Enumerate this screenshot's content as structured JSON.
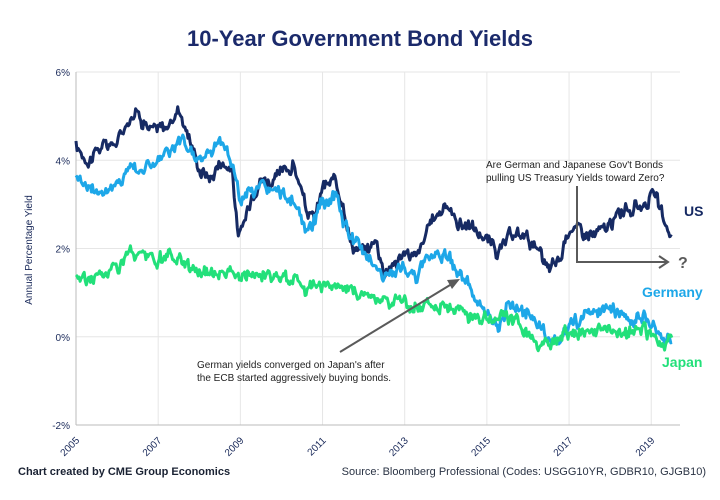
{
  "title": "10-Year Government Bond Yields",
  "credit": "Chart created by CME Group Economics",
  "source": "Source: Bloomberg Professional (Codes: USGG10YR, GDBR10, GJGB10)",
  "colors": {
    "us": "#162a63",
    "germany": "#1da7e8",
    "japan": "#22e07a",
    "text": "#1a2a5a",
    "arrow": "#5a5a5a",
    "grid": "#e6e6e6"
  },
  "chart_data": {
    "type": "line",
    "title": "10-Year Government Bond Yields",
    "ylabel": "Annual Percentage Yield",
    "xlabel": "",
    "xlim": [
      2005,
      2019.7
    ],
    "ylim": [
      -2,
      6
    ],
    "x_ticks": [
      "2005",
      "2007",
      "2009",
      "2011",
      "2013",
      "2015",
      "2017",
      "2019"
    ],
    "y_ticks": [
      "-2%",
      "0%",
      "2%",
      "4%",
      "6%"
    ],
    "y_tick_values": [
      -2,
      0,
      2,
      4,
      6
    ],
    "series": [
      {
        "name": "US",
        "label": "US",
        "x": [
          2005.0,
          2005.3,
          2005.6,
          2006.0,
          2006.3,
          2006.5,
          2006.8,
          2007.0,
          2007.3,
          2007.5,
          2007.8,
          2008.0,
          2008.3,
          2008.5,
          2008.8,
          2008.95,
          2009.1,
          2009.3,
          2009.5,
          2009.8,
          2010.0,
          2010.3,
          2010.6,
          2010.8,
          2011.0,
          2011.3,
          2011.5,
          2011.7,
          2012.0,
          2012.3,
          2012.5,
          2012.8,
          2013.0,
          2013.3,
          2013.7,
          2014.0,
          2014.3,
          2014.6,
          2015.0,
          2015.3,
          2015.6,
          2016.0,
          2016.3,
          2016.5,
          2016.8,
          2017.0,
          2017.3,
          2017.6,
          2018.0,
          2018.3,
          2018.6,
          2018.9,
          2019.1,
          2019.3,
          2019.5
        ],
        "values": [
          4.3,
          4.0,
          4.3,
          4.4,
          5.0,
          5.1,
          4.7,
          4.7,
          4.8,
          5.2,
          4.4,
          3.8,
          3.6,
          4.0,
          3.8,
          2.2,
          2.6,
          3.3,
          3.6,
          3.5,
          3.7,
          3.9,
          2.9,
          2.6,
          3.4,
          3.5,
          3.1,
          2.1,
          1.9,
          2.2,
          1.5,
          1.7,
          1.9,
          1.8,
          2.7,
          3.0,
          2.6,
          2.5,
          2.2,
          1.9,
          2.3,
          2.3,
          1.8,
          1.5,
          1.8,
          2.5,
          2.4,
          2.3,
          2.5,
          2.9,
          2.9,
          3.1,
          3.2,
          2.6,
          2.3
        ]
      },
      {
        "name": "Germany",
        "label": "Germany",
        "x": [
          2005.0,
          2005.3,
          2005.6,
          2006.0,
          2006.3,
          2006.6,
          2007.0,
          2007.3,
          2007.6,
          2008.0,
          2008.3,
          2008.5,
          2008.8,
          2009.0,
          2009.3,
          2009.6,
          2010.0,
          2010.3,
          2010.6,
          2011.0,
          2011.3,
          2011.6,
          2011.9,
          2012.2,
          2012.5,
          2012.8,
          2013.0,
          2013.3,
          2013.6,
          2014.0,
          2014.3,
          2014.6,
          2015.0,
          2015.3,
          2015.5,
          2015.8,
          2016.0,
          2016.3,
          2016.6,
          2016.9,
          2017.0,
          2017.3,
          2017.6,
          2018.0,
          2018.3,
          2018.6,
          2018.9,
          2019.1,
          2019.3,
          2019.5
        ],
        "values": [
          3.7,
          3.4,
          3.3,
          3.4,
          3.9,
          3.8,
          4.0,
          4.2,
          4.4,
          4.0,
          4.2,
          4.5,
          4.0,
          3.1,
          3.3,
          3.4,
          3.2,
          3.1,
          2.3,
          3.0,
          3.2,
          2.4,
          2.0,
          1.8,
          1.3,
          1.5,
          1.6,
          1.3,
          1.9,
          1.9,
          1.5,
          1.1,
          0.4,
          0.2,
          0.8,
          0.6,
          0.5,
          0.2,
          -0.1,
          0.1,
          0.3,
          0.4,
          0.5,
          0.6,
          0.5,
          0.4,
          0.4,
          0.2,
          -0.1,
          -0.1
        ]
      },
      {
        "name": "Japan",
        "label": "Japan",
        "x": [
          2005.0,
          2005.3,
          2005.6,
          2006.0,
          2006.3,
          2006.6,
          2007.0,
          2007.3,
          2007.6,
          2008.0,
          2008.3,
          2008.6,
          2009.0,
          2009.3,
          2009.6,
          2010.0,
          2010.3,
          2010.6,
          2011.0,
          2011.3,
          2011.6,
          2012.0,
          2012.3,
          2012.6,
          2013.0,
          2013.3,
          2013.6,
          2014.0,
          2014.3,
          2014.6,
          2015.0,
          2015.3,
          2015.6,
          2016.0,
          2016.3,
          2016.6,
          2016.9,
          2017.3,
          2017.6,
          2018.0,
          2018.3,
          2018.6,
          2018.9,
          2019.1,
          2019.3,
          2019.5
        ],
        "values": [
          1.4,
          1.3,
          1.4,
          1.6,
          1.9,
          1.8,
          1.7,
          1.8,
          1.7,
          1.5,
          1.4,
          1.6,
          1.3,
          1.4,
          1.4,
          1.3,
          1.4,
          1.1,
          1.2,
          1.2,
          1.0,
          1.0,
          0.9,
          0.8,
          0.8,
          0.6,
          0.8,
          0.7,
          0.6,
          0.5,
          0.4,
          0.4,
          0.4,
          0.1,
          -0.2,
          -0.2,
          0.0,
          0.1,
          0.1,
          0.1,
          0.1,
          0.1,
          0.1,
          0.0,
          -0.1,
          -0.1
        ]
      }
    ],
    "annotations": [
      {
        "lines": [
          "Are German and Japanese Gov't Bonds",
          "pulling US Treasury Yields toward Zero?"
        ]
      },
      {
        "lines": [
          "German yields converged on Japan's after",
          "the ECB started aggressively buying bonds."
        ]
      },
      {
        "text": "?"
      }
    ],
    "grid": true,
    "legend": "inline-right"
  }
}
